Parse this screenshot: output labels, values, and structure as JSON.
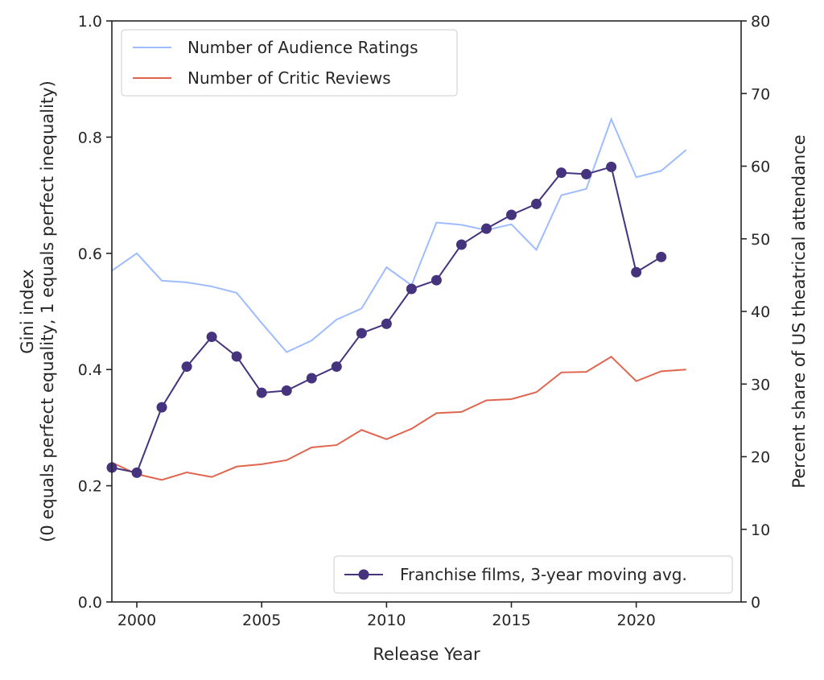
{
  "chart_data": {
    "type": "line",
    "title": "",
    "xlabel": "Release Year",
    "ylabel": "Gini index\n(0 equals perfect equality, 1 equals perfect inequality)",
    "ylabel_lines": [
      "Gini index",
      "(0 equals perfect equality, 1 equals perfect inequality)"
    ],
    "y2label": "Percent share of US theatrical attendance",
    "xlim": [
      1999,
      2024.2
    ],
    "ylim": [
      0,
      1
    ],
    "y2lim": [
      0,
      80
    ],
    "xticks": [
      2000,
      2005,
      2010,
      2015,
      2020
    ],
    "yticks": [
      "0.0",
      "0.2",
      "0.4",
      "0.6",
      "0.8",
      "1.0"
    ],
    "y2ticks": [
      "0",
      "10",
      "20",
      "30",
      "40",
      "50",
      "60",
      "70",
      "80"
    ],
    "grid": false,
    "x": [
      1999,
      2000,
      2001,
      2002,
      2003,
      2004,
      2005,
      2006,
      2007,
      2008,
      2009,
      2010,
      2011,
      2012,
      2013,
      2014,
      2015,
      2016,
      2017,
      2018,
      2019,
      2020,
      2021,
      2022
    ],
    "series": [
      {
        "name": "Number of Audience Ratings",
        "axis": "left",
        "color": "#9ebcff",
        "values": [
          0.57,
          0.6,
          0.553,
          0.55,
          0.543,
          0.532,
          0.48,
          0.43,
          0.45,
          0.486,
          0.505,
          0.576,
          0.545,
          0.653,
          0.649,
          0.64,
          0.65,
          0.606,
          0.7,
          0.711,
          0.831,
          0.731,
          0.742,
          0.778
        ]
      },
      {
        "name": "Number of Critic Reviews",
        "axis": "left",
        "color": "#e0654f",
        "values": [
          0.24,
          0.22,
          0.21,
          0.223,
          0.215,
          0.233,
          0.237,
          0.244,
          0.266,
          0.27,
          0.296,
          0.28,
          0.298,
          0.325,
          0.327,
          0.347,
          0.349,
          0.361,
          0.395,
          0.396,
          0.422,
          0.38,
          0.397,
          0.4
        ]
      },
      {
        "name": "Franchise films, 3-year moving avg.",
        "axis": "right",
        "color": "#45337d",
        "marker": "circle",
        "values": [
          18.5,
          17.8,
          26.8,
          32.4,
          36.5,
          33.8,
          28.8,
          29.1,
          30.8,
          32.4,
          37.0,
          38.3,
          43.1,
          44.3,
          49.2,
          51.4,
          53.3,
          54.8,
          59.1,
          58.9,
          59.9,
          45.4,
          47.5,
          null
        ]
      }
    ],
    "legends": [
      {
        "placement": "top-left",
        "entries": [
          0,
          1
        ]
      },
      {
        "placement": "bottom-right",
        "entries": [
          2
        ]
      }
    ]
  }
}
